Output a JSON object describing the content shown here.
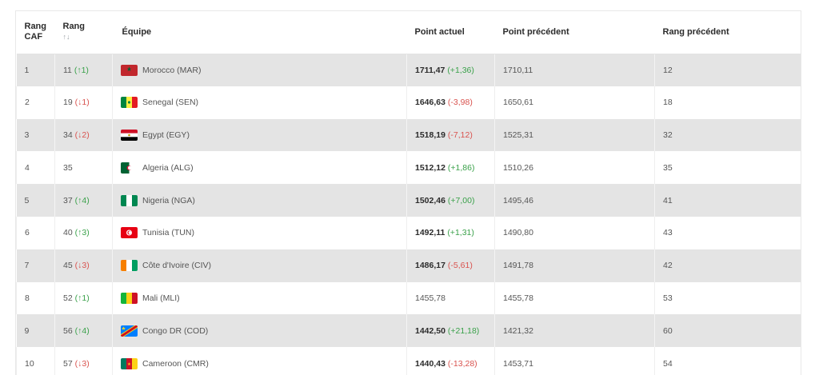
{
  "headers": {
    "rang_caf": "Rang CAF",
    "rang": "Rang",
    "rang_sort": "↑↓",
    "equipe": "Équipe",
    "point_actuel": "Point actuel",
    "point_precedent": "Point précédent",
    "rang_precedent": "Rang précédent"
  },
  "rows": [
    {
      "caf": "1",
      "rank": "11",
      "change": "(↑1)",
      "dir": "up",
      "flag": "mar",
      "team": "Morocco (MAR)",
      "points": "1711,47",
      "delta": "(+1,36)",
      "delta_dir": "up",
      "prev_points": "1710,11",
      "prev_rank": "12"
    },
    {
      "caf": "2",
      "rank": "19",
      "change": "(↓1)",
      "dir": "down",
      "flag": "sen",
      "team": "Senegal (SEN)",
      "points": "1646,63",
      "delta": "(-3,98)",
      "delta_dir": "down",
      "prev_points": "1650,61",
      "prev_rank": "18"
    },
    {
      "caf": "3",
      "rank": "34",
      "change": "(↓2)",
      "dir": "down",
      "flag": "egy",
      "team": "Egypt (EGY)",
      "points": "1518,19",
      "delta": "(-7,12)",
      "delta_dir": "down",
      "prev_points": "1525,31",
      "prev_rank": "32"
    },
    {
      "caf": "4",
      "rank": "35",
      "change": "",
      "dir": "none",
      "flag": "alg",
      "team": "Algeria (ALG)",
      "points": "1512,12",
      "delta": "(+1,86)",
      "delta_dir": "up",
      "prev_points": "1510,26",
      "prev_rank": "35"
    },
    {
      "caf": "5",
      "rank": "37",
      "change": "(↑4)",
      "dir": "up",
      "flag": "nga",
      "team": "Nigeria (NGA)",
      "points": "1502,46",
      "delta": "(+7,00)",
      "delta_dir": "up",
      "prev_points": "1495,46",
      "prev_rank": "41"
    },
    {
      "caf": "6",
      "rank": "40",
      "change": "(↑3)",
      "dir": "up",
      "flag": "tun",
      "team": "Tunisia (TUN)",
      "points": "1492,11",
      "delta": "(+1,31)",
      "delta_dir": "up",
      "prev_points": "1490,80",
      "prev_rank": "43"
    },
    {
      "caf": "7",
      "rank": "45",
      "change": "(↓3)",
      "dir": "down",
      "flag": "civ",
      "team": "Côte d'Ivoire (CIV)",
      "points": "1486,17",
      "delta": "(-5,61)",
      "delta_dir": "down",
      "prev_points": "1491,78",
      "prev_rank": "42"
    },
    {
      "caf": "8",
      "rank": "52",
      "change": "(↑1)",
      "dir": "up",
      "flag": "mli",
      "team": "Mali (MLI)",
      "points": "1455,78",
      "delta": "",
      "delta_dir": "none",
      "prev_points": "1455,78",
      "prev_rank": "53"
    },
    {
      "caf": "9",
      "rank": "56",
      "change": "(↑4)",
      "dir": "up",
      "flag": "cod",
      "team": "Congo DR (COD)",
      "points": "1442,50",
      "delta": "(+21,18)",
      "delta_dir": "up",
      "prev_points": "1421,32",
      "prev_rank": "60"
    },
    {
      "caf": "10",
      "rank": "57",
      "change": "(↓3)",
      "dir": "down",
      "flag": "cmr",
      "team": "Cameroon (CMR)",
      "points": "1440,43",
      "delta": "(-13,28)",
      "delta_dir": "down",
      "prev_points": "1453,71",
      "prev_rank": "54"
    }
  ],
  "colors": {
    "up": "#3aa14a",
    "down": "#d9534f",
    "row_alt": "#e4e4e4"
  }
}
